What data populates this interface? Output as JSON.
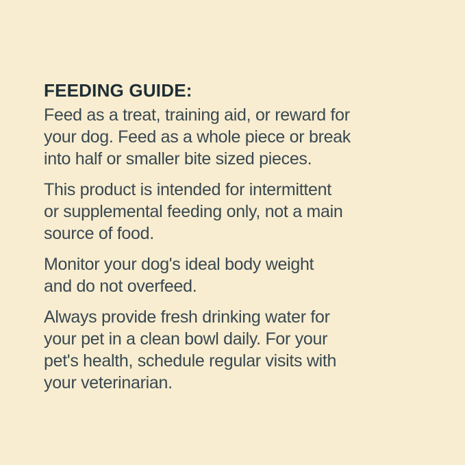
{
  "theme": {
    "background_color": "#F8EDD0",
    "heading_color": "#1E2D35",
    "body_text_color": "#394851"
  },
  "feeding_guide": {
    "heading": "FEEDING GUIDE:",
    "paragraphs": [
      {
        "lines": [
          "Feed as a treat, training aid, or reward for",
          "your dog. Feed as a whole piece or break",
          "into half or smaller bite sized pieces."
        ]
      },
      {
        "lines": [
          "This product is intended for intermittent",
          "or supplemental feeding only, not a main",
          "source of food."
        ]
      },
      {
        "lines": [
          "Monitor your dog's ideal body weight",
          "and do not overfeed."
        ]
      },
      {
        "lines": [
          "Always provide fresh drinking water for",
          "your pet in a clean bowl daily. For your",
          "pet's health, schedule regular visits with",
          "your veterinarian."
        ]
      }
    ]
  }
}
